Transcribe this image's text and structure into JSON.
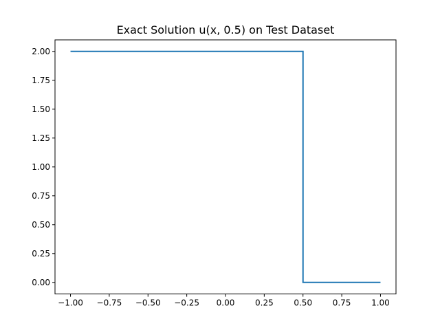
{
  "chart_data": {
    "type": "line",
    "title": "Exact Solution u(x, 0.5) on Test Dataset",
    "xlabel": "",
    "ylabel": "",
    "xlim": [
      -1.1,
      1.1
    ],
    "ylim": [
      -0.1,
      2.1
    ],
    "grid": false,
    "legend": "none",
    "x_ticks": [
      -1.0,
      -0.75,
      -0.5,
      -0.25,
      0.0,
      0.25,
      0.5,
      0.75,
      1.0
    ],
    "x_tick_labels": [
      "−1.00",
      "−0.75",
      "−0.50",
      "−0.25",
      "0.00",
      "0.25",
      "0.50",
      "0.75",
      "1.00"
    ],
    "y_ticks": [
      0.0,
      0.25,
      0.5,
      0.75,
      1.0,
      1.25,
      1.5,
      1.75,
      2.0
    ],
    "y_tick_labels": [
      "0.00",
      "0.25",
      "0.50",
      "0.75",
      "1.00",
      "1.25",
      "1.50",
      "1.75",
      "2.00"
    ],
    "series": [
      {
        "color": "#1f77b4",
        "x": [
          -1.0,
          0.5,
          0.5,
          1.0
        ],
        "y": [
          2.0,
          2.0,
          0.0,
          0.0
        ]
      }
    ]
  }
}
